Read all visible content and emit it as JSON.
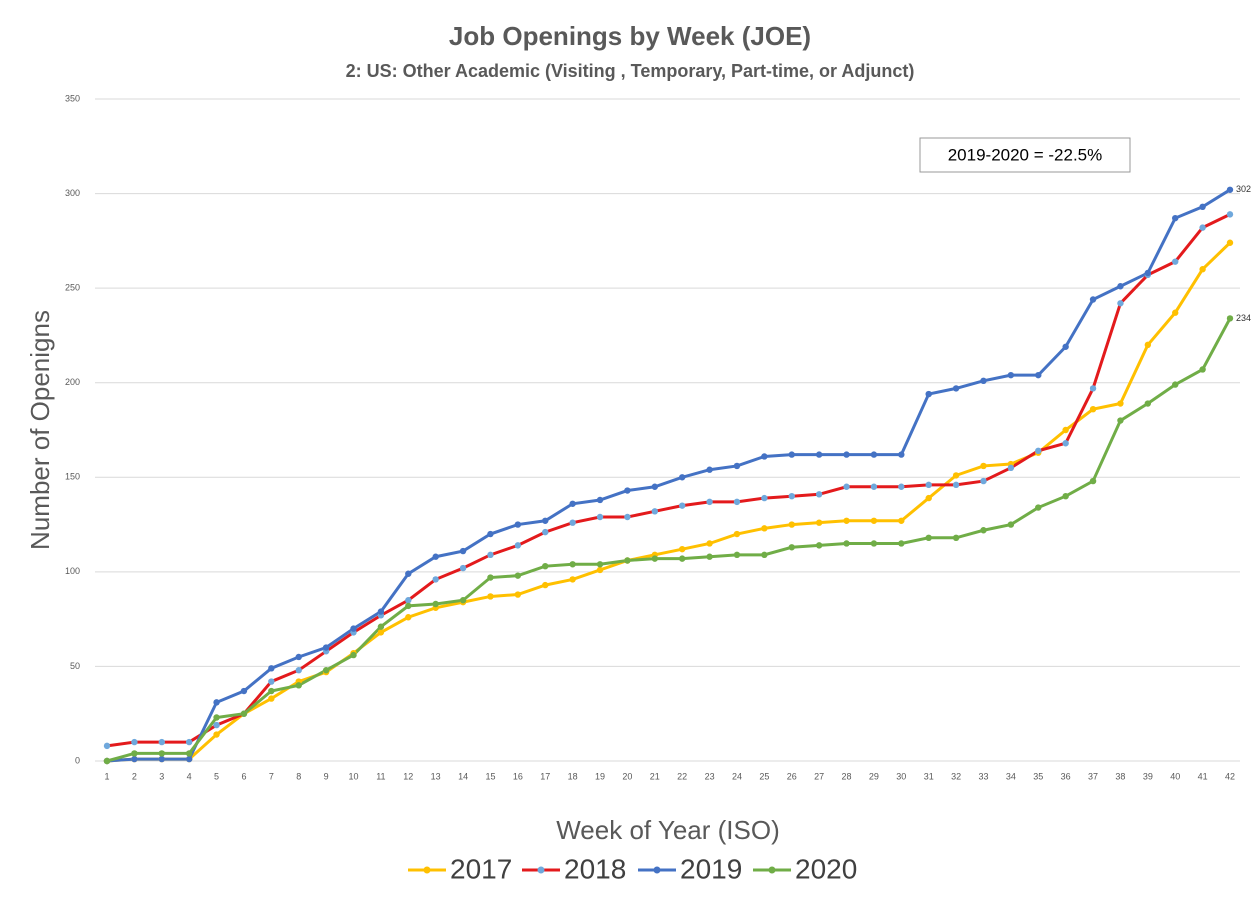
{
  "chart_data": {
    "type": "line",
    "title": "Job Openings by Week (JOE)",
    "subtitle": "2: US: Other Academic (Visiting , Temporary, Part-time, or Adjunct)",
    "x_label": "Week of Year (ISO)",
    "y_label": "Number of Openigns",
    "annotation": "2019-2020 = -22.5%",
    "categories": [
      "1",
      "2",
      "3",
      "4",
      "5",
      "6",
      "7",
      "8",
      "9",
      "10",
      "11",
      "12",
      "13",
      "14",
      "15",
      "16",
      "17",
      "18",
      "19",
      "20",
      "21",
      "22",
      "23",
      "24",
      "25",
      "26",
      "27",
      "28",
      "29",
      "30",
      "31",
      "32",
      "33",
      "34",
      "35",
      "36",
      "37",
      "38",
      "39",
      "40",
      "41",
      "42"
    ],
    "ylim": [
      0,
      350
    ],
    "yticks": [
      0,
      50,
      100,
      150,
      200,
      250,
      300,
      350
    ],
    "grid": true,
    "legend": "bottom",
    "series": [
      {
        "name": "2017",
        "color": "#ffc000",
        "marker_color": "#ffc000",
        "values": [
          0,
          1,
          1,
          1,
          14,
          25,
          33,
          42,
          47,
          57,
          68,
          76,
          81,
          84,
          87,
          88,
          93,
          96,
          101,
          106,
          109,
          112,
          115,
          120,
          123,
          125,
          126,
          127,
          127,
          127,
          139,
          151,
          156,
          157,
          163,
          175,
          186,
          189,
          220,
          237,
          260,
          274
        ]
      },
      {
        "name": "2018",
        "color": "#e31a1c",
        "marker_color": "#6fa8dc",
        "values": [
          8,
          10,
          10,
          10,
          19,
          25,
          42,
          48,
          58,
          68,
          77,
          85,
          96,
          102,
          109,
          114,
          121,
          126,
          129,
          129,
          132,
          135,
          137,
          137,
          139,
          140,
          141,
          145,
          145,
          145,
          146,
          146,
          148,
          155,
          164,
          168,
          197,
          242,
          257,
          264,
          282,
          289
        ]
      },
      {
        "name": "2019",
        "color": "#4472c4",
        "marker_color": "#4472c4",
        "values": [
          0,
          1,
          1,
          1,
          31,
          37,
          49,
          55,
          60,
          70,
          79,
          99,
          108,
          111,
          120,
          125,
          127,
          136,
          138,
          143,
          145,
          150,
          154,
          156,
          161,
          162,
          162,
          162,
          162,
          162,
          194,
          197,
          201,
          204,
          204,
          219,
          244,
          251,
          258,
          287,
          293,
          302
        ]
      },
      {
        "name": "2020",
        "color": "#70ad47",
        "marker_color": "#70ad47",
        "values": [
          0,
          4,
          4,
          4,
          23,
          25,
          37,
          40,
          48,
          56,
          71,
          82,
          83,
          85,
          97,
          98,
          103,
          104,
          104,
          106,
          107,
          107,
          108,
          109,
          109,
          113,
          114,
          115,
          115,
          115,
          118,
          118,
          122,
          125,
          134,
          140,
          148,
          180,
          189,
          199,
          207,
          234
        ]
      }
    ]
  }
}
